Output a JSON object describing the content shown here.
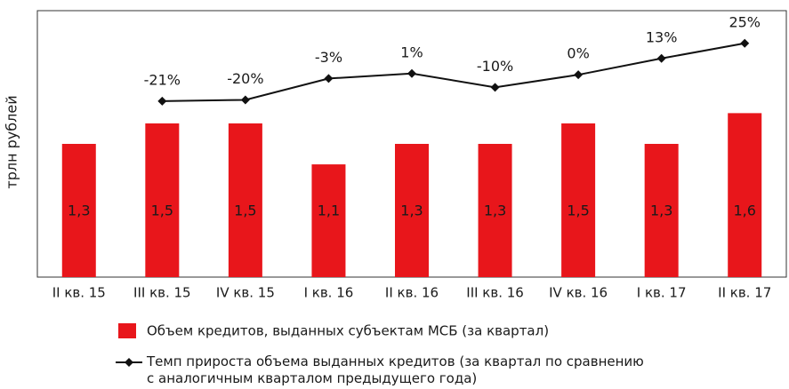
{
  "chart_data": {
    "type": "bar",
    "y_axis_label": "трлн  рублей",
    "categories": [
      "II  кв. 15",
      "III  кв. 15",
      "IV  кв. 15",
      "I кв. 16",
      "II  кв. 16",
      "III  кв. 16",
      "IV  кв. 16",
      "I кв. 17",
      "II  кв. 17"
    ],
    "ylim": [
      0,
      2.6
    ],
    "y2lim": [
      -161,
      51
    ],
    "series": [
      {
        "name": "Объем кредитов, выданных субъектам МСБ (за квартал)",
        "type": "bar",
        "color": "#e8161b",
        "values": [
          1.3,
          1.5,
          1.5,
          1.1,
          1.3,
          1.3,
          1.5,
          1.3,
          1.6
        ],
        "value_labels": [
          "1,3",
          "1,5",
          "1,5",
          "1,1",
          "1,3",
          "1,3",
          "1,5",
          "1,3",
          "1,6"
        ]
      },
      {
        "name": "Темп прироста объема выданных кредитов (за  квартал по сравнению с аналогичным  кварталом предыдущего года)",
        "type": "line",
        "axis": "y2",
        "color": "#111111",
        "values": [
          null,
          -21,
          -20,
          -3,
          1,
          -10,
          0,
          13,
          25
        ],
        "value_labels": [
          null,
          "-21%",
          "-20%",
          "-3%",
          "1%",
          "-10%",
          "0%",
          "13%",
          "25%"
        ]
      }
    ]
  }
}
